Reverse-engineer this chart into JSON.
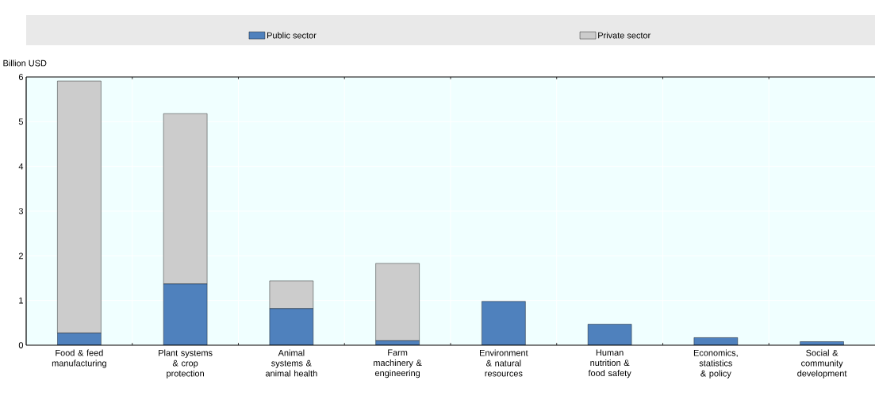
{
  "chart_data": {
    "type": "bar",
    "stacked": true,
    "ylabel": "Billion USD",
    "categories": [
      "Food & feed manufacturing",
      "Plant systems & crop protection",
      "Animal systems & animal health",
      "Farm machinery & engineering",
      "Environment & natural resources",
      "Human nutrition & food safety",
      "Economics, statistics & policy",
      "Social & community development"
    ],
    "series": [
      {
        "name": "Public sector",
        "color": "#4f81bd",
        "values": [
          0.27,
          1.37,
          0.82,
          0.1,
          0.98,
          0.47,
          0.17,
          0.08
        ]
      },
      {
        "name": "Private sector",
        "color": "#cccccc",
        "values": [
          5.64,
          3.81,
          0.62,
          1.73,
          null,
          null,
          null,
          null
        ]
      }
    ],
    "ylim": [
      0,
      6
    ],
    "yticks": [
      0,
      1,
      2,
      3,
      4,
      5,
      6
    ],
    "grid": true,
    "legend": "top"
  }
}
